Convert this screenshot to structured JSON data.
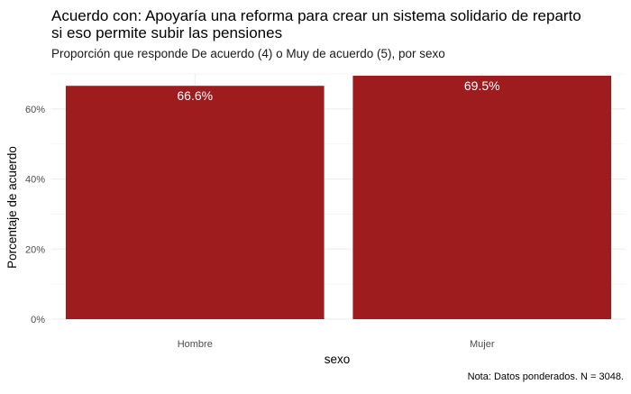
{
  "chart_data": {
    "type": "bar",
    "title": "Acuerdo con: Apoyaría una reforma para crear un sistema solidario de reparto si eso permite subir las pensiones",
    "title_lines": [
      "Acuerdo con: Apoyaría una reforma para crear un sistema solidario de reparto",
      "si eso permite subir las pensiones"
    ],
    "subtitle": "Proporción que responde De acuerdo (4) o Muy de acuerdo (5), por sexo",
    "xlabel": "sexo",
    "ylabel": "Porcentaje de acuerdo",
    "categories": [
      "Hombre",
      "Mujer"
    ],
    "values": [
      66.6,
      69.5
    ],
    "value_labels": [
      "66.6%",
      "69.5%"
    ],
    "ylim": [
      0,
      70
    ],
    "y_ticks": [
      0,
      20,
      40,
      60
    ],
    "y_tick_labels": [
      "0%",
      "20%",
      "40%",
      "60%"
    ],
    "bar_color": "#9E1B1E",
    "grid": true,
    "caption": "Nota: Datos ponderados. N = 3048."
  }
}
